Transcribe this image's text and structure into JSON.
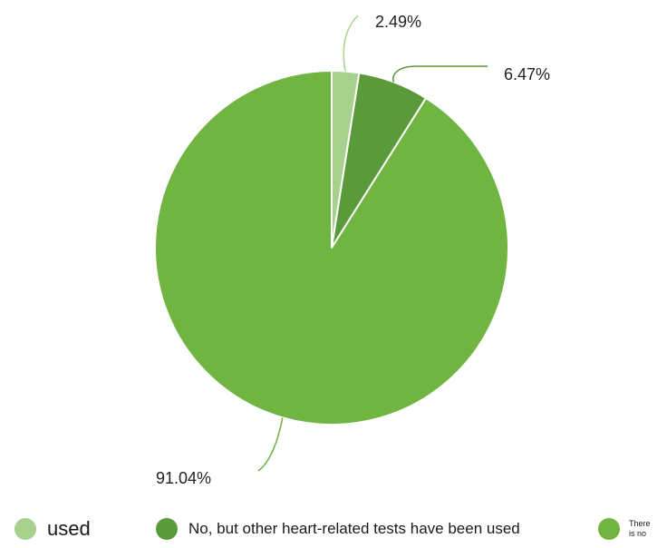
{
  "chart_data": {
    "type": "pie",
    "title": "",
    "start_angle_deg": 0,
    "direction": "clockwise",
    "slices": [
      {
        "name": "used",
        "value": 2.49,
        "label": "2.49%",
        "color": "#a9d18e"
      },
      {
        "name": "No, but other heart-related tests have been used",
        "value": 6.47,
        "label": "6.47%",
        "color": "#5a9a3a"
      },
      {
        "name": "There is no",
        "value": 91.04,
        "label": "91.04%",
        "color": "#70b441"
      }
    ],
    "legend": {
      "placement": "bottom"
    }
  }
}
